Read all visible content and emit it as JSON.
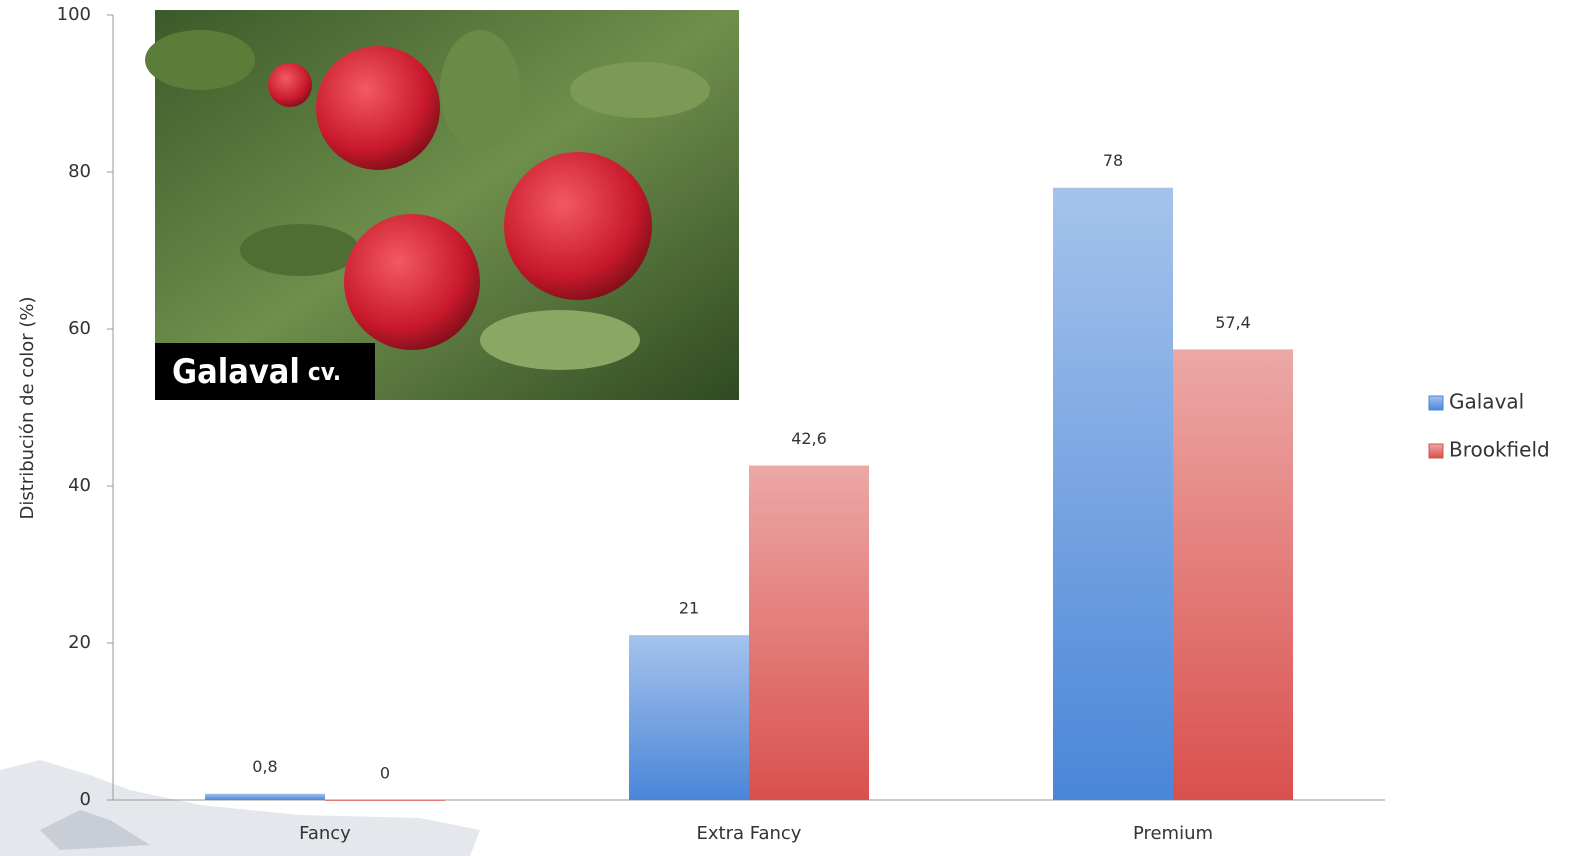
{
  "chart_data": {
    "type": "bar",
    "y_label": "Distribución de color (%)",
    "categories": [
      "Fancy",
      "Extra Fancy",
      "Premium"
    ],
    "series": [
      {
        "name": "Galaval",
        "color": "#4a86d8",
        "values": [
          0.8,
          21,
          78
        ],
        "value_labels": [
          "0,8",
          "21",
          "78"
        ]
      },
      {
        "name": "Brookfield",
        "color": "#d9504d",
        "values": [
          0,
          42.6,
          57.4
        ],
        "value_labels": [
          "0",
          "42,6",
          "57,4"
        ]
      }
    ],
    "ylim": [
      0,
      100
    ],
    "yticks": [
      0,
      20,
      40,
      60,
      80,
      100
    ],
    "legend": "right",
    "photo_caption": {
      "name": "Galaval",
      "suffix": "cv."
    }
  }
}
